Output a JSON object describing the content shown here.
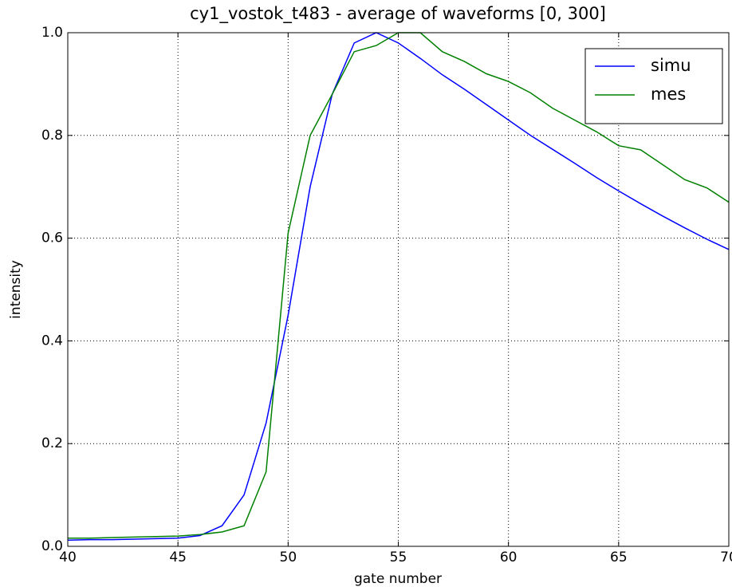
{
  "chart_data": {
    "type": "line",
    "title": "cy1_vostok_t483 - average of waveforms [0, 300]",
    "xlabel": "gate number",
    "ylabel": "intensity",
    "x": [
      40,
      41,
      42,
      43,
      44,
      45,
      46,
      47,
      48,
      49,
      50,
      51,
      52,
      53,
      54,
      55,
      56,
      57,
      58,
      59,
      60,
      61,
      62,
      63,
      64,
      65,
      66,
      67,
      68,
      69,
      70
    ],
    "series": [
      {
        "name": "simu",
        "color": "#0000ff",
        "values": [
          0.012,
          0.013,
          0.013,
          0.014,
          0.015,
          0.016,
          0.021,
          0.04,
          0.1,
          0.24,
          0.45,
          0.7,
          0.88,
          0.98,
          1.0,
          0.98,
          0.95,
          0.918,
          0.89,
          0.86,
          0.83,
          0.8,
          0.773,
          0.746,
          0.718,
          0.692,
          0.667,
          0.643,
          0.62,
          0.598,
          0.578
        ]
      },
      {
        "name": "mes",
        "color": "#008000",
        "values": [
          0.016,
          0.016,
          0.017,
          0.018,
          0.019,
          0.02,
          0.023,
          0.028,
          0.04,
          0.145,
          0.61,
          0.8,
          0.88,
          0.963,
          0.975,
          1.0,
          1.0,
          0.963,
          0.944,
          0.92,
          0.905,
          0.883,
          0.853,
          0.83,
          0.807,
          0.78,
          0.772,
          0.743,
          0.714,
          0.698,
          0.67
        ]
      }
    ],
    "xlim": [
      40,
      70
    ],
    "xticks": [
      40,
      45,
      50,
      55,
      60,
      65,
      70
    ],
    "ylim": [
      0,
      1
    ],
    "yticks": [
      {
        "value": 0,
        "label": "0.0"
      },
      0.2,
      0.4,
      0.6,
      0.8,
      {
        "value": 1,
        "label": "1.0"
      }
    ],
    "grid": true,
    "legend": "upper right"
  }
}
